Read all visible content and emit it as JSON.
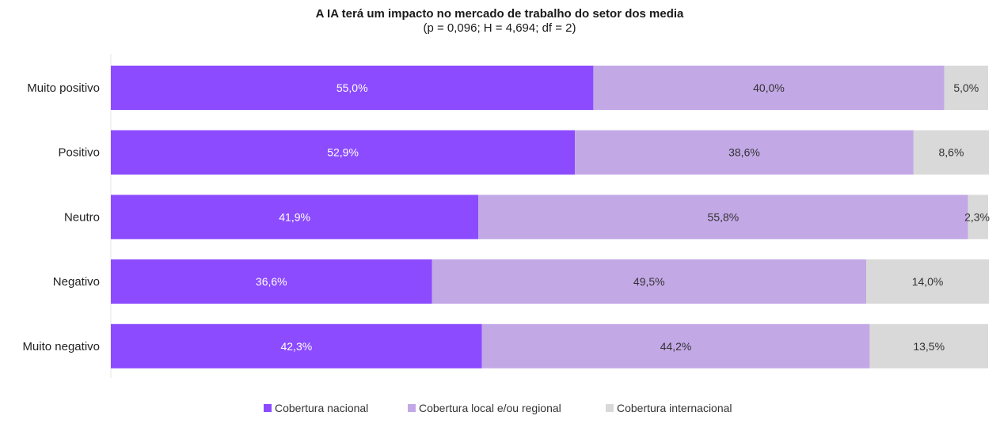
{
  "chart_data": {
    "type": "bar",
    "orientation": "horizontal",
    "stacked": true,
    "title": "A IA terá um impacto no mercado de trabalho do setor dos media",
    "subtitle": "(p = 0,096; H = 4,694; df = 2)",
    "categories": [
      "Muito positivo",
      "Positivo",
      "Neutro",
      "Negativo",
      "Muito negativo"
    ],
    "series": [
      {
        "name": "Cobertura nacional",
        "color": "#8c4bff",
        "label_color": "#ffffff",
        "values": [
          55.0,
          52.9,
          41.9,
          36.6,
          42.3
        ],
        "labels": [
          "55,0%",
          "52,9%",
          "41,9%",
          "36,6%",
          "42,3%"
        ]
      },
      {
        "name": "Cobertura local e/ou regional",
        "color": "#c3a8e6",
        "label_color": "#333333",
        "values": [
          40.0,
          38.6,
          55.8,
          49.5,
          44.2
        ],
        "labels": [
          "40,0%",
          "38,6%",
          "55,8%",
          "49,5%",
          "44,2%"
        ]
      },
      {
        "name": "Cobertura internacional",
        "color": "#d9d9d9",
        "label_color": "#333333",
        "values": [
          5.0,
          8.6,
          2.3,
          14.0,
          13.5
        ],
        "labels": [
          "5,0%",
          "8,6%",
          "2,3%",
          "14,0%",
          "13,5%"
        ]
      }
    ],
    "xlim": [
      0,
      100
    ],
    "grid": false,
    "legend_position": "bottom"
  }
}
